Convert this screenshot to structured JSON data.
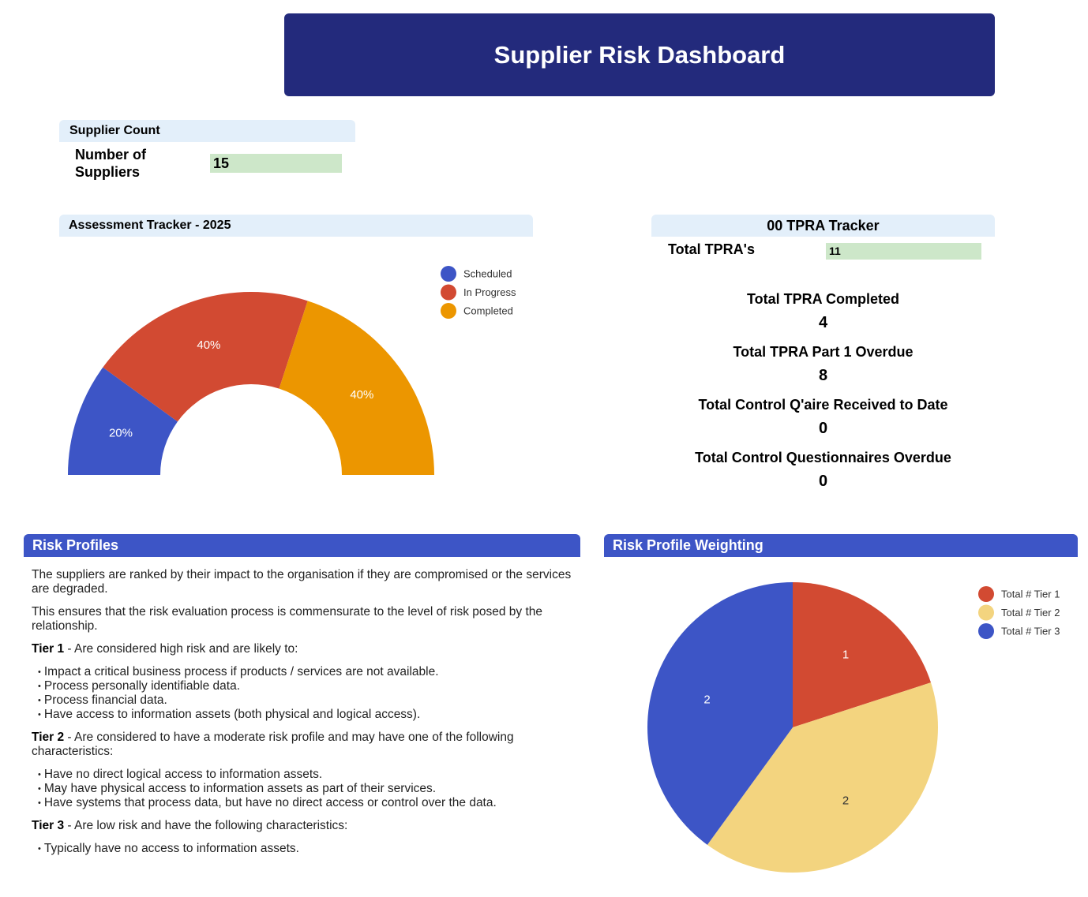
{
  "header": {
    "title": "Supplier Risk Dashboard"
  },
  "supplier_count": {
    "heading": "Supplier Count",
    "label": "Number of Suppliers",
    "value": "15"
  },
  "assessment": {
    "heading": "Assessment Tracker - 2025",
    "legend": [
      "Scheduled",
      "In Progress",
      "Completed"
    ],
    "slice_labels": [
      "20%",
      "40%",
      "40%"
    ]
  },
  "tpra": {
    "heading": "00 TPRA Tracker",
    "total_label": "Total TPRA's",
    "total_value": "11",
    "stats": [
      {
        "label": "Total TPRA Completed",
        "value": "4"
      },
      {
        "label": "Total TPRA Part 1 Overdue",
        "value": "8"
      },
      {
        "label": "Total Control Q'aire Received to Date",
        "value": "0"
      },
      {
        "label": "Total Control Questionnaires Overdue",
        "value": "0"
      }
    ]
  },
  "risk_profiles": {
    "heading": "Risk Profiles",
    "intro1": "The suppliers are ranked by their impact to the organisation if they are compromised or the services are degraded.",
    "intro2": "This ensures that the risk evaluation process is commensurate to the level of risk posed by the relationship.",
    "tier1": {
      "name": "Tier 1",
      "desc": " - Are considered high risk and are likely to:",
      "items": [
        "Impact a critical business process if products / services are not available.",
        "Process personally identifiable data.",
        "Process financial data.",
        "Have access to information assets (both physical and logical access)."
      ]
    },
    "tier2": {
      "name": "Tier 2",
      "desc": " - Are considered to have a moderate risk profile and may have one of the following characteristics:",
      "items": [
        "Have no direct logical access to information assets.",
        "May have physical access to information assets as part of their services.",
        "Have systems that process data, but have no direct access or control over the data."
      ]
    },
    "tier3": {
      "name": "Tier 3",
      "desc": " - Are low risk and have the following characteristics:",
      "items": [
        "Typically have no access to information assets."
      ]
    }
  },
  "risk_weighting": {
    "heading": "Risk Profile Weighting"
  },
  "colors": {
    "banner": "#232a7c",
    "blue": "#3d55c6",
    "red": "#d24a32",
    "orange": "#ec9600",
    "yellow": "#f3d47f",
    "light_header": "#e3effa",
    "green": "#cde7c9"
  },
  "chart_data": [
    {
      "type": "pie",
      "variant": "half-donut",
      "categories": [
        "Scheduled",
        "In Progress",
        "Completed"
      ],
      "values": [
        20,
        40,
        40
      ],
      "data_labels": [
        "20%",
        "40%",
        "40%"
      ],
      "colors": [
        "#3d55c6",
        "#d24a32",
        "#ec9600"
      ],
      "legend": "top-right"
    },
    {
      "type": "pie",
      "categories": [
        "Total # Tier 1",
        "Total # Tier 2",
        "Total # Tier 3"
      ],
      "values": [
        1,
        2,
        2
      ],
      "data_labels": [
        "1",
        "2",
        "2"
      ],
      "colors": [
        "#d24a32",
        "#f3d47f",
        "#3d55c6"
      ],
      "legend": "top-right"
    }
  ]
}
